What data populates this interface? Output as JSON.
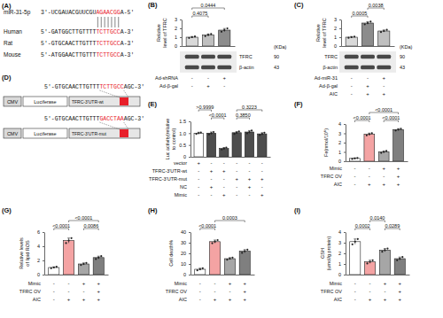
{
  "panel_a": {
    "panel": "(A)",
    "rows": [
      {
        "label": "miR-31-5p",
        "segments": [
          {
            "text": "3'-UCGAUACGUUCGU"
          },
          {
            "text": "AGAACGG",
            "color": "#e8202a"
          },
          {
            "text": "A-5'"
          }
        ]
      },
      {
        "label": "Human",
        "segments": [
          {
            "text": "5'-GATGGCTTGTTTT"
          },
          {
            "text": "TCTTGCC",
            "color": "#e8202a"
          },
          {
            "text": "A-3'"
          }
        ]
      },
      {
        "label": "Rat",
        "segments": [
          {
            "text": "5'-GTGCAACTTGTTT"
          },
          {
            "text": "TCTTGCC",
            "color": "#e8202a"
          },
          {
            "text": "A-3'"
          }
        ]
      },
      {
        "label": "Mouse",
        "segments": [
          {
            "text": "5'-ATGGAACTTGTTT"
          },
          {
            "text": "TCTTGCC",
            "color": "#e8202a"
          },
          {
            "text": "A-3'"
          }
        ]
      }
    ]
  },
  "panel_d": {
    "panel": "(D)",
    "promoter": "CMV",
    "reporter": "Luciferase",
    "constructs": [
      {
        "label": "TFRC-3'UTR-wt",
        "segments": [
          {
            "text": "5'-GTGCAACTTGTTT"
          },
          {
            "text": "TCTTGCC",
            "color": "#e8202a"
          },
          {
            "text": "AGC-3'"
          }
        ]
      },
      {
        "label": "TFRC-3'UTR-mut",
        "segments": [
          {
            "text": "5'-GTGCAACTTGTTT"
          },
          {
            "text": "GACCTAA",
            "color": "#e8202a"
          },
          {
            "text": "AGC-3'"
          }
        ]
      }
    ]
  },
  "chart_data": [
    {
      "type": "bar",
      "panel": "(B)",
      "y_label": "Relative level of TFRC",
      "values": [
        1.0,
        1.25,
        1.8
      ],
      "errors": [
        0.08,
        0.12,
        0.18
      ],
      "points": [
        [
          0.92,
          1.0,
          1.08
        ],
        [
          1.12,
          1.26,
          1.37
        ],
        [
          1.62,
          1.79,
          1.99
        ]
      ],
      "colors": [
        "#d9d9d9",
        "#bfbfbf",
        "#8c8c8c"
      ],
      "ylim": [
        0,
        3
      ],
      "yticks": [
        0,
        1,
        2,
        3
      ],
      "tick_labels": "y",
      "comparisons": [
        {
          "bars": [
            0,
            1
          ],
          "label": "0.4075"
        },
        {
          "bars": [
            0,
            2
          ],
          "label": "0.0444"
        }
      ],
      "conditions": [
        {
          "label": "Ad-shRNA",
          "signs": [
            "-",
            "-",
            "+"
          ]
        },
        {
          "label": "Ad-β-gal",
          "signs": [
            "-",
            "+",
            "-"
          ]
        }
      ],
      "blot": {
        "unit": "(KDa)",
        "rows": [
          {
            "label": "TFRC",
            "kda": 90
          },
          {
            "label": "β-actin",
            "kda": 43
          }
        ]
      }
    },
    {
      "type": "bar",
      "panel": "(C)",
      "y_label": "Relative level of TFRC",
      "values": [
        1.0,
        2.6,
        1.7
      ],
      "errors": [
        0.08,
        0.15,
        0.12
      ],
      "points": [
        [
          0.93,
          1.0,
          1.07
        ],
        [
          2.45,
          2.6,
          2.76
        ],
        [
          1.58,
          1.7,
          1.83
        ]
      ],
      "colors": [
        "#d9d9d9",
        "#8c8c8c",
        "#bfbfbf"
      ],
      "ylim": [
        0,
        3
      ],
      "yticks": [
        0,
        1,
        2,
        3
      ],
      "tick_labels": "y",
      "comparisons": [
        {
          "bars": [
            0,
            1
          ],
          "label": "0.0005"
        },
        {
          "bars": [
            1,
            2
          ],
          "label": "0.0038"
        }
      ],
      "conditions": [
        {
          "label": "Ad-miR-31",
          "signs": [
            "-",
            "-",
            "+"
          ]
        },
        {
          "label": "Ad-β-gal",
          "signs": [
            "-",
            "+",
            "-"
          ]
        },
        {
          "label": "AIC",
          "signs": [
            "-",
            "+",
            "+"
          ]
        }
      ],
      "blot": {
        "unit": "(KDa)",
        "rows": [
          {
            "label": "TFRC",
            "kda": 90
          },
          {
            "label": "β-actin",
            "kda": 43
          }
        ]
      }
    },
    {
      "type": "bar",
      "panel": "(E)",
      "y_label": "Luc activity(relative to control)",
      "values": [
        1.0,
        1.0,
        0.35,
        1.02,
        1.05,
        0.97
      ],
      "errors": [
        0.04,
        0.05,
        0.04,
        0.05,
        0.06,
        0.05
      ],
      "points": [
        [
          0.97,
          1.0,
          1.03
        ],
        [
          0.95,
          1.0,
          1.05
        ],
        [
          0.31,
          0.35,
          0.39
        ],
        [
          0.97,
          1.02,
          1.07
        ],
        [
          0.99,
          1.05,
          1.11
        ],
        [
          0.92,
          0.97,
          1.02
        ]
      ],
      "colors": [
        "#ffffff",
        "#4d4d4d",
        "#4d4d4d",
        "#4d4d4d",
        "#4d4d4d",
        "#4d4d4d"
      ],
      "ylim": [
        0,
        1.5
      ],
      "yticks": [
        0,
        0.5,
        {
          "value": 1,
          "label": "1.0"
        },
        1.5
      ],
      "tick_labels": "y",
      "comparisons": [
        {
          "bars": [
            1,
            2
          ],
          "label": "<0.0001"
        },
        {
          "bars": [
            0,
            1
          ],
          "label": ">0.9999"
        },
        {
          "bars": [
            3,
            4
          ],
          "label": "0.3850"
        },
        {
          "bars": [
            3,
            5
          ],
          "label": "0.3223"
        }
      ],
      "conditions": [
        {
          "label": "vector",
          "signs": [
            "+",
            "-",
            "-",
            "-",
            "-",
            "-"
          ]
        },
        {
          "label": "TFRC-3'UTR-wt",
          "signs": [
            "-",
            "+",
            "+",
            "-",
            "-",
            "-"
          ]
        },
        {
          "label": "TFRC-3'UTR-mut",
          "signs": [
            "-",
            "-",
            "-",
            "+",
            "+",
            "+"
          ]
        },
        {
          "label": "NC",
          "signs": [
            "-",
            "+",
            "-",
            "-",
            "+",
            "-"
          ]
        },
        {
          "label": "Mimic",
          "signs": [
            "-",
            "-",
            "+",
            "-",
            "-",
            "+"
          ]
        }
      ]
    },
    {
      "type": "bar",
      "panel": "(F)",
      "y_label": "Fe(nmol/10⁶)",
      "values": [
        0.3,
        2.9,
        1.0,
        3.4
      ],
      "errors": [
        0.05,
        0.12,
        0.1,
        0.1
      ],
      "points": [
        [
          0.25,
          0.3,
          0.35
        ],
        [
          2.78,
          2.9,
          3.02
        ],
        [
          0.9,
          1.0,
          1.1
        ],
        [
          3.3,
          3.4,
          3.5
        ]
      ],
      "colors": [
        "#ffffff",
        "#f4a3a3",
        "#a6a6a6",
        "#7f7f7f"
      ],
      "ylim": [
        0,
        4
      ],
      "yticks": [
        0,
        1,
        2,
        3,
        4
      ],
      "tick_labels": "y",
      "comparisons": [
        {
          "bars": [
            0,
            1
          ],
          "label": "<0.0001"
        },
        {
          "bars": [
            2,
            3
          ],
          "label": "<0.0001"
        },
        {
          "bars": [
            1,
            3
          ],
          "label": "<0.0001"
        }
      ],
      "conditions": [
        {
          "label": "Mimic",
          "signs": [
            "-",
            "-",
            "+",
            "+"
          ]
        },
        {
          "label": "TFRC OV",
          "signs": [
            "-",
            "-",
            "-",
            "+"
          ]
        },
        {
          "label": "AIC",
          "signs": [
            "-",
            "+",
            "+",
            "+"
          ]
        }
      ]
    },
    {
      "type": "bar",
      "panel": "(G)",
      "y_label": "Relative levels of lipid ROS",
      "values": [
        1.0,
        4.8,
        1.5,
        2.4
      ],
      "errors": [
        0.1,
        0.35,
        0.15,
        0.2
      ],
      "points": [
        [
          0.9,
          1.0,
          1.1
        ],
        [
          4.45,
          4.8,
          5.15
        ],
        [
          1.35,
          1.5,
          1.65
        ],
        [
          2.2,
          2.4,
          2.6
        ]
      ],
      "colors": [
        "#ffffff",
        "#f4a3a3",
        "#a6a6a6",
        "#7f7f7f"
      ],
      "ylim": [
        0,
        6
      ],
      "yticks": [
        0,
        2,
        4,
        6
      ],
      "tick_labels": "y",
      "comparisons": [
        {
          "bars": [
            0,
            1
          ],
          "label": "<0.0001"
        },
        {
          "bars": [
            2,
            3
          ],
          "label": "0.0086"
        },
        {
          "bars": [
            1,
            3
          ],
          "label": "<0.0001"
        }
      ],
      "conditions": [
        {
          "label": "Mimic",
          "signs": [
            "-",
            "-",
            "+",
            "+"
          ]
        },
        {
          "label": "TFRC OV",
          "signs": [
            "-",
            "-",
            "-",
            "+"
          ]
        },
        {
          "label": "AIC",
          "signs": [
            "-",
            "+",
            "+",
            "+"
          ]
        }
      ]
    },
    {
      "type": "bar",
      "panel": "(H)",
      "y_label": "Cell death%",
      "values": [
        5,
        31,
        15,
        22
      ],
      "errors": [
        1,
        1.5,
        1,
        1.5
      ],
      "points": [
        [
          4,
          5,
          6
        ],
        [
          29.5,
          31,
          32.5
        ],
        [
          14,
          15,
          16
        ],
        [
          20.5,
          22,
          23.5
        ]
      ],
      "colors": [
        "#ffffff",
        "#f4a3a3",
        "#a6a6a6",
        "#7f7f7f"
      ],
      "ylim": [
        0,
        40
      ],
      "yticks": [
        0,
        10,
        20,
        30,
        40
      ],
      "tick_labels": "y",
      "comparisons": [
        {
          "bars": [
            0,
            1
          ],
          "label": "<0.0001"
        },
        {
          "bars": [
            1,
            3
          ],
          "label": "0.0003"
        }
      ],
      "conditions": [
        {
          "label": "Mimic",
          "signs": [
            "-",
            "-",
            "+",
            "+"
          ]
        },
        {
          "label": "TFRC OV",
          "signs": [
            "-",
            "-",
            "-",
            "+"
          ]
        },
        {
          "label": "AIC",
          "signs": [
            "-",
            "+",
            "+",
            "+"
          ]
        }
      ]
    },
    {
      "type": "bar",
      "panel": "(I)",
      "y_label": "GSH (umol/g protein)",
      "values": [
        3.1,
        1.2,
        2.3,
        1.5
      ],
      "errors": [
        0.25,
        0.15,
        0.15,
        0.15
      ],
      "points": [
        [
          2.85,
          3.1,
          3.35
        ],
        [
          1.05,
          1.2,
          1.35
        ],
        [
          2.15,
          2.3,
          2.45
        ],
        [
          1.35,
          1.5,
          1.65
        ]
      ],
      "colors": [
        "#ffffff",
        "#f4a3a3",
        "#a6a6a6",
        "#7f7f7f"
      ],
      "ylim": [
        0,
        4
      ],
      "yticks": [
        0,
        1,
        2,
        3,
        4
      ],
      "tick_labels": "y",
      "comparisons": [
        {
          "bars": [
            0,
            1
          ],
          "label": "0.0002"
        },
        {
          "bars": [
            1,
            2
          ],
          "label": "0.0140"
        },
        {
          "bars": [
            2,
            3
          ],
          "label": "0.0289"
        }
      ],
      "conditions": [
        {
          "label": "Mimic",
          "signs": [
            "-",
            "-",
            "+",
            "+"
          ]
        },
        {
          "label": "TFRC OV",
          "signs": [
            "-",
            "-",
            "-",
            "+"
          ]
        },
        {
          "label": "AIC",
          "signs": [
            "-",
            "+",
            "+",
            "+"
          ]
        }
      ]
    }
  ]
}
